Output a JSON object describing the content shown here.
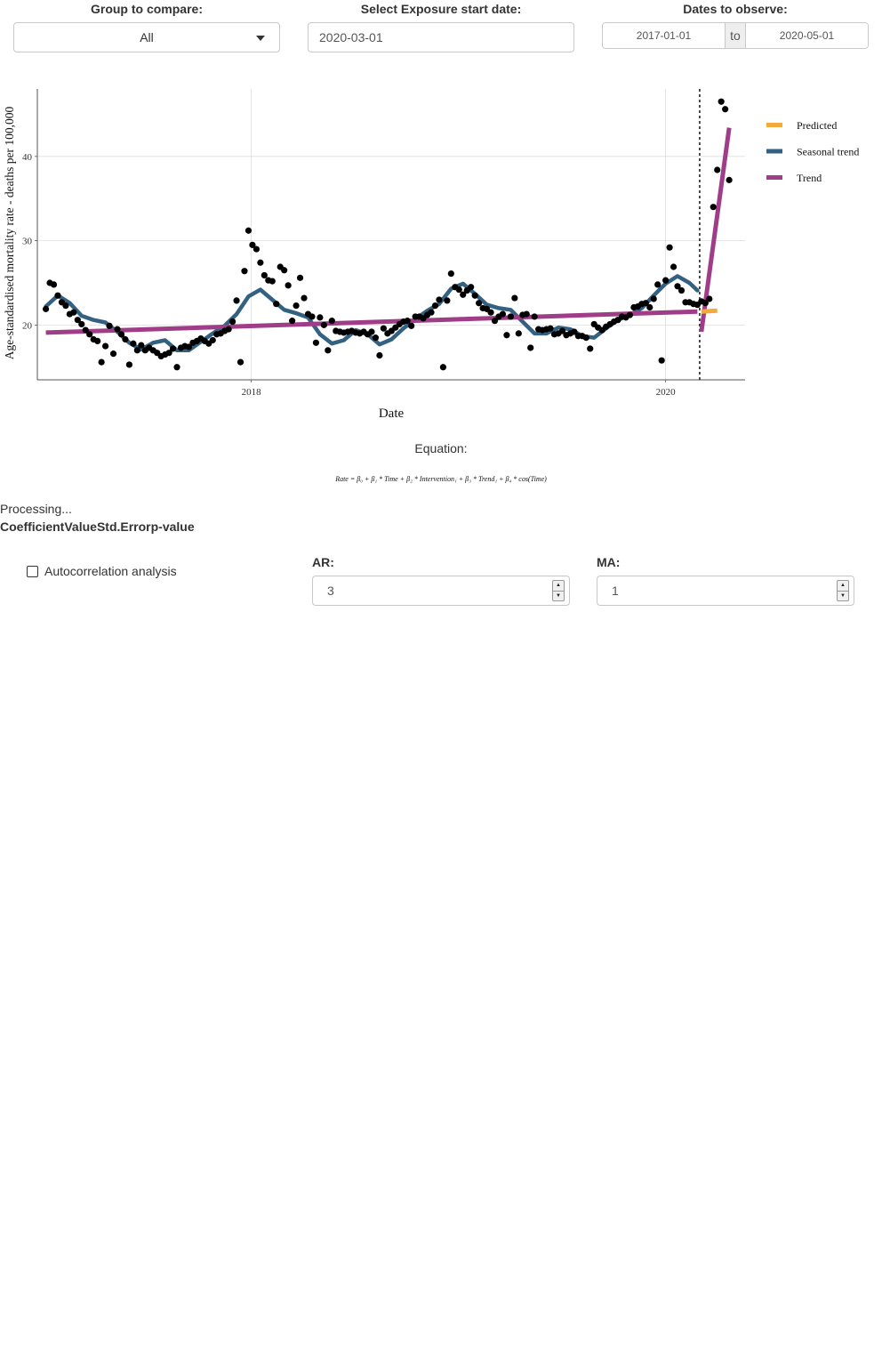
{
  "controls": {
    "group": {
      "label": "Group to compare:",
      "value": "All"
    },
    "exposure": {
      "label": "Select Exposure start date:",
      "value": "2020-03-01"
    },
    "dates": {
      "label": "Dates to observe:",
      "start": "2017-01-01",
      "separator": "to",
      "end": "2020-05-01"
    }
  },
  "equation": {
    "label": "Equation:",
    "formula": "Rate = β₀ + β₁ * Time + β₂ * Intervention₁ + β₃ * Trend₁ + β₄ * cos(Time)"
  },
  "status": {
    "processing": "Processing..."
  },
  "coef_table": {
    "headers": [
      "Coefficient",
      "Value",
      "Std.Error",
      "p-value"
    ]
  },
  "autocorrelation": {
    "label": "Autocorrelation analysis",
    "checked": false
  },
  "arima": {
    "ar_label": "AR:",
    "ar_value": "3",
    "ma_label": "MA:",
    "ma_value": "1"
  },
  "icons": {
    "select": "chevron-down-icon",
    "spinner_up": "arrow-up-icon",
    "spinner_down": "arrow-down-icon"
  },
  "chart_data": {
    "type": "scatter",
    "title": "",
    "xlabel": "Date",
    "ylabel": "Age-standardised mortality rate - deaths per 100,000",
    "x_ticks": [
      "2018",
      "2020"
    ],
    "y_ticks": [
      20,
      30,
      40
    ],
    "xlim": [
      "2016-12-20",
      "2020-05-20"
    ],
    "ylim": [
      13.5,
      48
    ],
    "exposure_date": "2020-03-01",
    "grid": true,
    "legend_position": "right",
    "legend": [
      {
        "name": "Predicted",
        "color": "#F5A93B"
      },
      {
        "name": "Seasonal trend",
        "color": "#336182"
      },
      {
        "name": "Trend",
        "color": "#A03D89"
      }
    ],
    "points": [
      [
        "2017-01-04",
        21.9
      ],
      [
        "2017-01-11",
        25.0
      ],
      [
        "2017-01-18",
        24.8
      ],
      [
        "2017-01-25",
        23.5
      ],
      [
        "2017-02-01",
        22.7
      ],
      [
        "2017-02-08",
        22.3
      ],
      [
        "2017-02-15",
        21.3
      ],
      [
        "2017-02-22",
        21.5
      ],
      [
        "2017-03-01",
        20.6
      ],
      [
        "2017-03-08",
        20.1
      ],
      [
        "2017-03-15",
        19.4
      ],
      [
        "2017-03-22",
        18.9
      ],
      [
        "2017-03-29",
        18.3
      ],
      [
        "2017-04-05",
        18.1
      ],
      [
        "2017-04-12",
        15.6
      ],
      [
        "2017-04-19",
        17.5
      ],
      [
        "2017-04-26",
        19.9
      ],
      [
        "2017-05-03",
        16.6
      ],
      [
        "2017-05-10",
        19.5
      ],
      [
        "2017-05-17",
        18.9
      ],
      [
        "2017-05-24",
        18.3
      ],
      [
        "2017-05-31",
        15.3
      ],
      [
        "2017-06-07",
        17.8
      ],
      [
        "2017-06-14",
        17.0
      ],
      [
        "2017-06-21",
        17.6
      ],
      [
        "2017-06-28",
        17.0
      ],
      [
        "2017-07-05",
        17.3
      ],
      [
        "2017-07-12",
        17.0
      ],
      [
        "2017-07-19",
        16.7
      ],
      [
        "2017-07-26",
        16.3
      ],
      [
        "2017-08-02",
        16.5
      ],
      [
        "2017-08-09",
        16.7
      ],
      [
        "2017-08-16",
        17.2
      ],
      [
        "2017-08-23",
        15.0
      ],
      [
        "2017-08-30",
        17.3
      ],
      [
        "2017-09-06",
        17.5
      ],
      [
        "2017-09-13",
        17.4
      ],
      [
        "2017-09-20",
        17.9
      ],
      [
        "2017-09-27",
        18.1
      ],
      [
        "2017-10-04",
        18.4
      ],
      [
        "2017-10-11",
        18.1
      ],
      [
        "2017-10-18",
        17.8
      ],
      [
        "2017-10-25",
        18.2
      ],
      [
        "2017-11-01",
        18.9
      ],
      [
        "2017-11-08",
        19.0
      ],
      [
        "2017-11-15",
        19.3
      ],
      [
        "2017-11-22",
        19.5
      ],
      [
        "2017-11-29",
        20.4
      ],
      [
        "2017-12-06",
        22.9
      ],
      [
        "2017-12-13",
        15.6
      ],
      [
        "2017-12-20",
        26.4
      ],
      [
        "2017-12-27",
        31.2
      ],
      [
        "2018-01-03",
        29.5
      ],
      [
        "2018-01-10",
        29.0
      ],
      [
        "2018-01-17",
        27.4
      ],
      [
        "2018-01-24",
        25.9
      ],
      [
        "2018-01-31",
        25.3
      ],
      [
        "2018-02-07",
        25.2
      ],
      [
        "2018-02-14",
        22.5
      ],
      [
        "2018-02-21",
        26.9
      ],
      [
        "2018-02-28",
        26.5
      ],
      [
        "2018-03-07",
        24.7
      ],
      [
        "2018-03-14",
        20.5
      ],
      [
        "2018-03-21",
        22.3
      ],
      [
        "2018-03-28",
        25.6
      ],
      [
        "2018-04-04",
        23.2
      ],
      [
        "2018-04-11",
        21.3
      ],
      [
        "2018-04-18",
        21.0
      ],
      [
        "2018-04-25",
        17.9
      ],
      [
        "2018-05-02",
        20.9
      ],
      [
        "2018-05-09",
        20.0
      ],
      [
        "2018-05-16",
        17.0
      ],
      [
        "2018-05-23",
        20.5
      ],
      [
        "2018-05-30",
        19.3
      ],
      [
        "2018-06-06",
        19.2
      ],
      [
        "2018-06-13",
        19.1
      ],
      [
        "2018-06-20",
        19.2
      ],
      [
        "2018-06-27",
        19.3
      ],
      [
        "2018-07-04",
        19.1
      ],
      [
        "2018-07-11",
        19.0
      ],
      [
        "2018-07-18",
        19.2
      ],
      [
        "2018-07-25",
        18.9
      ],
      [
        "2018-08-01",
        19.2
      ],
      [
        "2018-08-08",
        18.5
      ],
      [
        "2018-08-15",
        16.4
      ],
      [
        "2018-08-22",
        19.6
      ],
      [
        "2018-08-29",
        19.0
      ],
      [
        "2018-09-05",
        19.3
      ],
      [
        "2018-09-12",
        19.7
      ],
      [
        "2018-09-19",
        20.1
      ],
      [
        "2018-09-26",
        20.4
      ],
      [
        "2018-10-03",
        20.5
      ],
      [
        "2018-10-10",
        19.9
      ],
      [
        "2018-10-17",
        21.0
      ],
      [
        "2018-10-24",
        21.0
      ],
      [
        "2018-10-31",
        20.8
      ],
      [
        "2018-11-07",
        21.2
      ],
      [
        "2018-11-14",
        21.5
      ],
      [
        "2018-11-21",
        22.3
      ],
      [
        "2018-11-28",
        23.0
      ],
      [
        "2018-12-05",
        15.0
      ],
      [
        "2018-12-12",
        22.9
      ],
      [
        "2018-12-19",
        26.1
      ],
      [
        "2018-12-26",
        24.5
      ],
      [
        "2019-01-02",
        24.2
      ],
      [
        "2019-01-09",
        23.6
      ],
      [
        "2019-01-16",
        24.1
      ],
      [
        "2019-01-23",
        24.5
      ],
      [
        "2019-01-30",
        23.5
      ],
      [
        "2019-02-06",
        22.6
      ],
      [
        "2019-02-13",
        22.0
      ],
      [
        "2019-02-20",
        21.9
      ],
      [
        "2019-02-27",
        21.5
      ],
      [
        "2019-03-06",
        20.5
      ],
      [
        "2019-03-13",
        21.0
      ],
      [
        "2019-03-20",
        21.3
      ],
      [
        "2019-03-27",
        18.8
      ],
      [
        "2019-04-03",
        21.0
      ],
      [
        "2019-04-10",
        23.2
      ],
      [
        "2019-04-17",
        19.0
      ],
      [
        "2019-04-24",
        21.2
      ],
      [
        "2019-05-01",
        21.3
      ],
      [
        "2019-05-08",
        17.3
      ],
      [
        "2019-05-15",
        21.0
      ],
      [
        "2019-05-22",
        19.5
      ],
      [
        "2019-05-29",
        19.4
      ],
      [
        "2019-06-05",
        19.5
      ],
      [
        "2019-06-12",
        19.6
      ],
      [
        "2019-06-19",
        18.9
      ],
      [
        "2019-06-26",
        19.0
      ],
      [
        "2019-07-03",
        19.3
      ],
      [
        "2019-07-10",
        18.8
      ],
      [
        "2019-07-17",
        19.0
      ],
      [
        "2019-07-24",
        19.2
      ],
      [
        "2019-07-31",
        18.7
      ],
      [
        "2019-08-07",
        18.7
      ],
      [
        "2019-08-14",
        18.5
      ],
      [
        "2019-08-21",
        17.2
      ],
      [
        "2019-08-28",
        20.1
      ],
      [
        "2019-09-04",
        19.7
      ],
      [
        "2019-09-11",
        19.4
      ],
      [
        "2019-09-18",
        19.8
      ],
      [
        "2019-09-25",
        20.1
      ],
      [
        "2019-10-02",
        20.4
      ],
      [
        "2019-10-09",
        20.6
      ],
      [
        "2019-10-16",
        21.0
      ],
      [
        "2019-10-23",
        20.9
      ],
      [
        "2019-10-30",
        21.2
      ],
      [
        "2019-11-06",
        22.1
      ],
      [
        "2019-11-13",
        22.2
      ],
      [
        "2019-11-20",
        22.5
      ],
      [
        "2019-11-27",
        22.6
      ],
      [
        "2019-12-04",
        22.1
      ],
      [
        "2019-12-11",
        23.1
      ],
      [
        "2019-12-18",
        24.8
      ],
      [
        "2019-12-25",
        15.8
      ],
      [
        "2020-01-01",
        25.3
      ],
      [
        "2020-01-08",
        29.2
      ],
      [
        "2020-01-15",
        26.9
      ],
      [
        "2020-01-22",
        24.6
      ],
      [
        "2020-01-29",
        24.1
      ],
      [
        "2020-02-05",
        22.7
      ],
      [
        "2020-02-12",
        22.7
      ],
      [
        "2020-02-19",
        22.5
      ],
      [
        "2020-02-26",
        22.4
      ],
      [
        "2020-03-04",
        22.8
      ],
      [
        "2020-03-11",
        22.6
      ],
      [
        "2020-03-18",
        23.1
      ],
      [
        "2020-03-25",
        34.0
      ],
      [
        "2020-04-01",
        38.4
      ],
      [
        "2020-04-08",
        46.5
      ],
      [
        "2020-04-15",
        45.6
      ],
      [
        "2020-04-22",
        37.2
      ]
    ],
    "series": [
      {
        "name": "Seasonal trend",
        "points": [
          [
            "2017-01-04",
            22.2
          ],
          [
            "2017-01-25",
            23.5
          ],
          [
            "2017-02-15",
            22.6
          ],
          [
            "2017-03-08",
            21.1
          ],
          [
            "2017-03-29",
            20.6
          ],
          [
            "2017-04-19",
            20.3
          ],
          [
            "2017-05-10",
            19.2
          ],
          [
            "2017-05-31",
            17.9
          ],
          [
            "2017-06-21",
            17.1
          ],
          [
            "2017-07-12",
            17.9
          ],
          [
            "2017-08-02",
            18.2
          ],
          [
            "2017-08-23",
            17.0
          ],
          [
            "2017-09-13",
            17.0
          ],
          [
            "2017-10-04",
            18.0
          ],
          [
            "2017-10-25",
            19.0
          ],
          [
            "2017-11-15",
            19.9
          ],
          [
            "2017-12-06",
            21.3
          ],
          [
            "2017-12-27",
            23.4
          ],
          [
            "2018-01-17",
            24.2
          ],
          [
            "2018-02-07",
            23.0
          ],
          [
            "2018-02-28",
            21.8
          ],
          [
            "2018-03-21",
            21.4
          ],
          [
            "2018-04-11",
            20.9
          ],
          [
            "2018-05-02",
            18.9
          ],
          [
            "2018-05-23",
            17.8
          ],
          [
            "2018-06-13",
            18.2
          ],
          [
            "2018-07-04",
            19.4
          ],
          [
            "2018-07-25",
            18.9
          ],
          [
            "2018-08-15",
            17.7
          ],
          [
            "2018-09-05",
            18.3
          ],
          [
            "2018-09-26",
            19.6
          ],
          [
            "2018-10-17",
            20.7
          ],
          [
            "2018-11-07",
            21.7
          ],
          [
            "2018-11-28",
            22.5
          ],
          [
            "2018-12-19",
            24.3
          ],
          [
            "2019-01-09",
            24.9
          ],
          [
            "2019-01-30",
            23.7
          ],
          [
            "2019-02-20",
            22.4
          ],
          [
            "2019-03-13",
            22.0
          ],
          [
            "2019-04-03",
            21.8
          ],
          [
            "2019-04-24",
            20.4
          ],
          [
            "2019-05-15",
            19.0
          ],
          [
            "2019-06-05",
            19.0
          ],
          [
            "2019-06-26",
            19.7
          ],
          [
            "2019-07-17",
            19.5
          ],
          [
            "2019-08-07",
            18.7
          ],
          [
            "2019-08-28",
            18.5
          ],
          [
            "2019-09-18",
            19.6
          ],
          [
            "2019-10-09",
            20.6
          ],
          [
            "2019-10-30",
            21.2
          ],
          [
            "2019-11-20",
            22.0
          ],
          [
            "2019-12-11",
            23.5
          ],
          [
            "2020-01-01",
            24.9
          ],
          [
            "2020-01-22",
            25.8
          ],
          [
            "2020-02-12",
            25.0
          ],
          [
            "2020-02-26",
            24.1
          ]
        ]
      },
      {
        "name": "Trend",
        "segments": [
          [
            [
              "2017-01-04",
              19.1
            ],
            [
              "2020-02-26",
              21.6
            ]
          ],
          [
            [
              "2020-03-04",
              19.2
            ],
            [
              "2020-04-22",
              43.4
            ]
          ]
        ]
      },
      {
        "name": "Predicted",
        "points": [
          [
            "2020-03-04",
            21.6
          ],
          [
            "2020-04-01",
            21.7
          ]
        ]
      }
    ]
  }
}
